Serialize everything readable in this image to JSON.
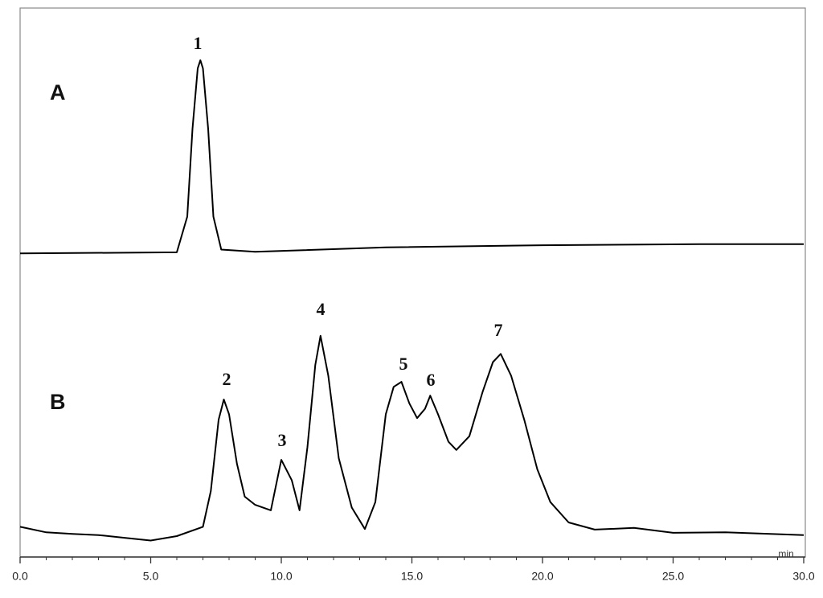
{
  "chart_data": {
    "type": "line",
    "x_label": "min",
    "xlim": [
      0,
      30
    ],
    "ylim": [
      0,
      100
    ],
    "xticks": [
      {
        "value": 0,
        "label": "0.0"
      },
      {
        "value": 5,
        "label": "5.0"
      },
      {
        "value": 10,
        "label": "10.0"
      },
      {
        "value": 15,
        "label": "15.0"
      },
      {
        "value": 20,
        "label": "20.0"
      },
      {
        "value": 25,
        "label": "25.0"
      },
      {
        "value": 30,
        "label": "30.0"
      }
    ],
    "xminorticks": [
      1,
      2,
      3,
      4,
      6,
      7,
      8,
      9,
      11,
      12,
      13,
      14,
      16,
      17,
      18,
      19,
      21,
      22,
      23,
      24,
      26,
      27,
      28,
      29
    ],
    "series": [
      {
        "name": "A",
        "color": "#000000",
        "x": [
          0,
          6.0,
          6.4,
          6.6,
          6.8,
          6.9,
          7.0,
          7.2,
          7.4,
          7.7,
          9,
          14,
          20,
          26,
          30
        ],
        "values": [
          55.3,
          55.5,
          62,
          78,
          89,
          90.5,
          89,
          78,
          62,
          56,
          55.6,
          56.4,
          56.8,
          57.0,
          57.0
        ],
        "peak_labels": [
          "1"
        ]
      },
      {
        "name": "B",
        "color": "#000000",
        "x": [
          0,
          1,
          2,
          3,
          4,
          5,
          6,
          7,
          7.3,
          7.6,
          7.8,
          8.0,
          8.3,
          8.6,
          9.0,
          9.6,
          10.0,
          10.4,
          10.7,
          11.0,
          11.3,
          11.5,
          11.8,
          12.2,
          12.7,
          13.2,
          13.6,
          14.0,
          14.3,
          14.6,
          14.9,
          15.2,
          15.5,
          15.7,
          16.0,
          16.4,
          16.7,
          17.2,
          17.7,
          18.1,
          18.4,
          18.8,
          19.3,
          19.8,
          20.3,
          21,
          22,
          23.5,
          25,
          27,
          30
        ],
        "values": [
          5.5,
          4.5,
          4.2,
          4.0,
          3.5,
          3.0,
          3.8,
          5.5,
          12,
          25,
          28.7,
          26,
          17,
          11,
          9.5,
          8.5,
          17.7,
          14,
          8.5,
          20,
          35,
          40.3,
          33,
          18,
          9,
          5.1,
          10,
          26,
          31,
          31.9,
          28,
          25.3,
          27,
          29.4,
          26,
          21,
          19.5,
          22,
          30,
          35.5,
          37,
          33,
          25,
          16,
          10,
          6.3,
          5,
          5.3,
          4.4,
          4.5,
          4.0
        ],
        "peak_labels": [
          "2",
          "3",
          "4",
          "5",
          "6",
          "7"
        ]
      }
    ]
  }
}
